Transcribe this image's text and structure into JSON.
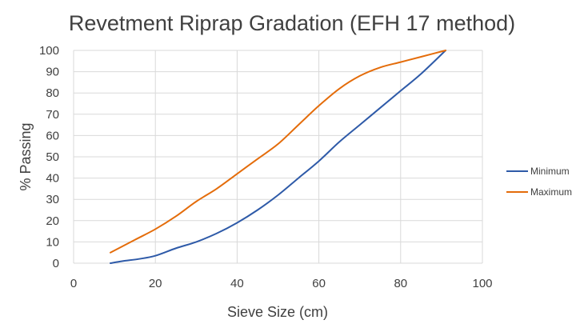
{
  "chart_data": {
    "type": "line",
    "title": "Revetment Riprap Gradation (EFH 17 method)",
    "xlabel": "Sieve Size (cm)",
    "ylabel": "% Passing",
    "xlim": [
      0,
      100
    ],
    "ylim": [
      0,
      100
    ],
    "x_ticks": [
      0,
      20,
      40,
      60,
      80,
      100
    ],
    "y_ticks": [
      0,
      10,
      20,
      30,
      40,
      50,
      60,
      70,
      80,
      90,
      100
    ],
    "grid": "vertical and horizontal",
    "legend_position": "right",
    "series": [
      {
        "name": "Minimum",
        "color": "#2e5aa8",
        "points": [
          [
            9,
            0
          ],
          [
            12,
            1
          ],
          [
            16,
            2
          ],
          [
            20,
            3.5
          ],
          [
            25,
            7
          ],
          [
            30,
            10
          ],
          [
            35,
            14
          ],
          [
            40,
            19
          ],
          [
            45,
            25
          ],
          [
            50,
            32
          ],
          [
            55,
            40
          ],
          [
            60,
            48
          ],
          [
            65,
            57
          ],
          [
            70,
            65
          ],
          [
            75,
            73
          ],
          [
            80,
            81
          ],
          [
            85,
            89
          ],
          [
            91,
            100
          ]
        ]
      },
      {
        "name": "Maximum",
        "color": "#e46c0a",
        "points": [
          [
            9,
            5
          ],
          [
            15,
            11
          ],
          [
            20,
            16
          ],
          [
            25,
            22
          ],
          [
            30,
            29
          ],
          [
            35,
            35
          ],
          [
            40,
            42
          ],
          [
            45,
            49
          ],
          [
            50,
            56
          ],
          [
            55,
            65
          ],
          [
            60,
            74
          ],
          [
            65,
            82
          ],
          [
            70,
            88
          ],
          [
            75,
            92
          ],
          [
            80,
            94.5
          ],
          [
            85,
            97
          ],
          [
            91,
            100
          ]
        ]
      }
    ]
  }
}
